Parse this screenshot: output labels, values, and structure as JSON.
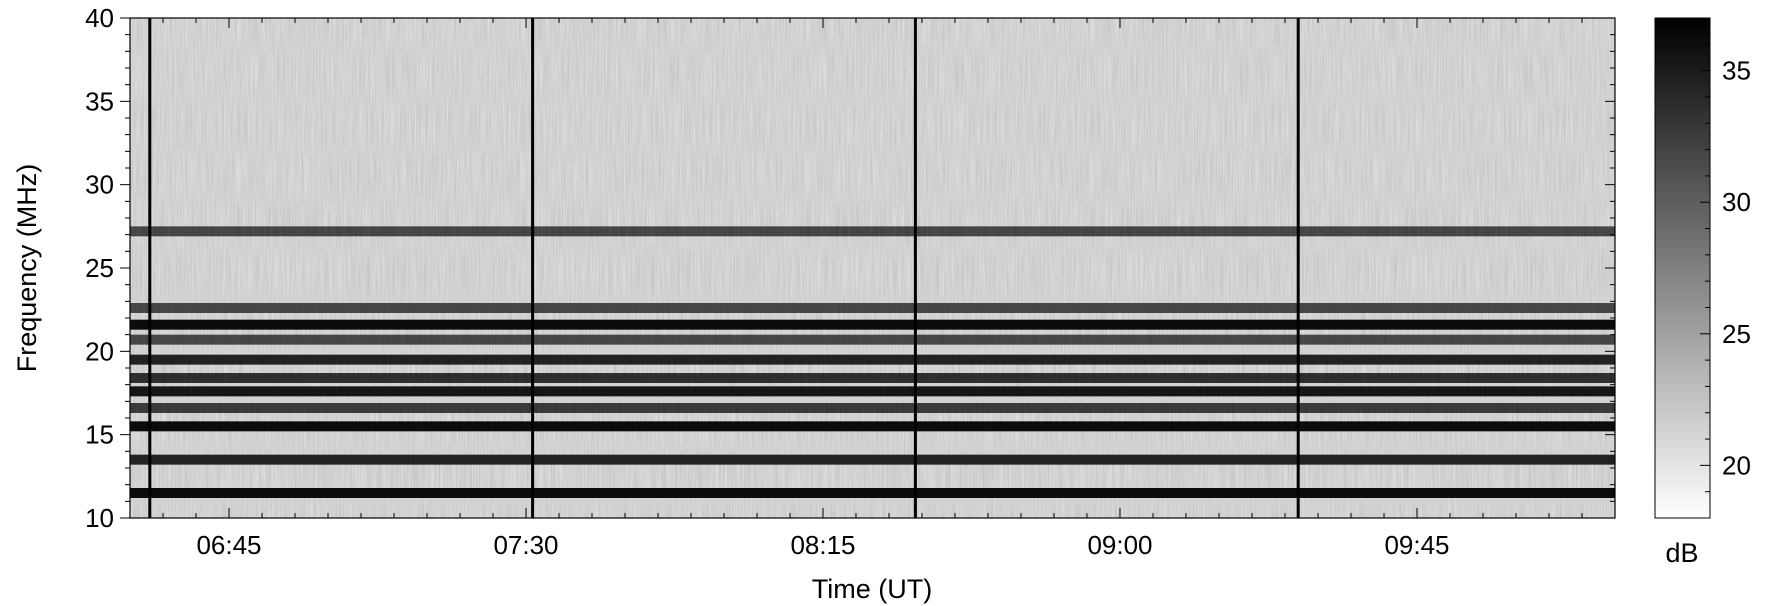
{
  "chart_data": {
    "type": "heatmap",
    "title": "",
    "xlabel": "Time (UT)",
    "ylabel": "Frequency (MHz)",
    "x_range": [
      "06:30",
      "10:15"
    ],
    "ylim": [
      10,
      40
    ],
    "x_ticks": [
      "06:45",
      "07:30",
      "08:15",
      "09:00",
      "09:45"
    ],
    "y_ticks": [
      10,
      15,
      20,
      25,
      30,
      35,
      40
    ],
    "colorbar": {
      "label": "dB",
      "range": [
        18,
        37
      ],
      "ticks": [
        20,
        25,
        30,
        35
      ],
      "colormap": "grayscale (white = low, black = high)"
    },
    "grid": false,
    "bright_bands_MHz": [
      {
        "freq": 11.5,
        "intensity": 0.95
      },
      {
        "freq": 13.5,
        "intensity": 0.85
      },
      {
        "freq": 15.5,
        "intensity": 0.95
      },
      {
        "freq": 16.6,
        "intensity": 0.75
      },
      {
        "freq": 17.6,
        "intensity": 0.9
      },
      {
        "freq": 18.4,
        "intensity": 0.8
      },
      {
        "freq": 19.5,
        "intensity": 0.85
      },
      {
        "freq": 20.7,
        "intensity": 0.7
      },
      {
        "freq": 21.6,
        "intensity": 0.95
      },
      {
        "freq": 22.6,
        "intensity": 0.7
      },
      {
        "freq": 27.2,
        "intensity": 0.7
      }
    ],
    "vertical_lines_UT": [
      "06:33",
      "07:31",
      "08:29",
      "09:27"
    ]
  }
}
